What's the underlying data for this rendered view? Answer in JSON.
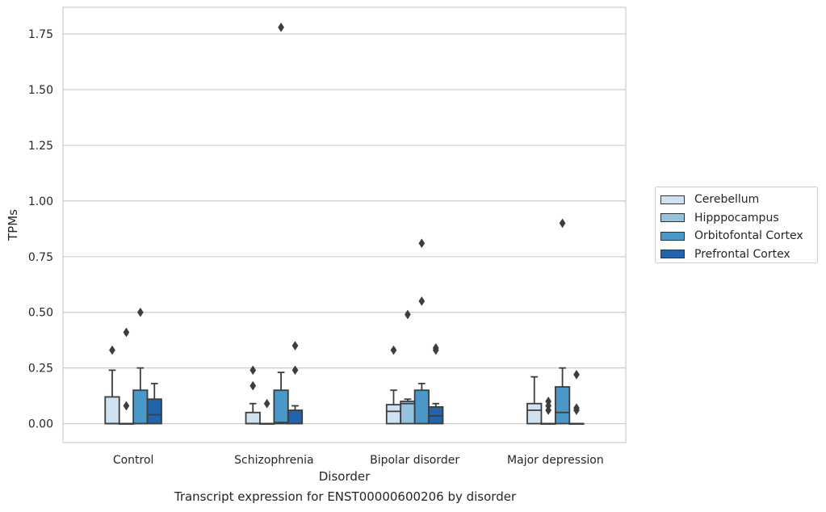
{
  "caption": "Transcript expression for ENST00000600206 by disorder",
  "colors": {
    "Cerebellum": "#d0e1f2",
    "Hipppocampus": "#93c3df",
    "Orbitofontal Cortex": "#4a98c9",
    "Prefrontal Cortex": "#2164ab",
    "grid": "#cccccc",
    "box_edge": "#3d3d3d"
  },
  "chart_data": {
    "type": "box",
    "title": "",
    "xlabel": "Disorder",
    "ylabel": "TPMs",
    "ylim": [
      -0.085,
      1.87
    ],
    "yticks": [
      0.0,
      0.25,
      0.5,
      0.75,
      1.0,
      1.25,
      1.5,
      1.75
    ],
    "ytick_labels": [
      "0.00",
      "0.25",
      "0.50",
      "0.75",
      "1.00",
      "1.25",
      "1.50",
      "1.75"
    ],
    "grid": true,
    "legend_position": "right",
    "categories": [
      "Control",
      "Schizophrenia",
      "Bipolar disorder",
      "Major depression"
    ],
    "series": [
      {
        "name": "Cerebellum",
        "boxes": [
          {
            "q1": 0.0,
            "median": 0.0,
            "q3": 0.12,
            "whislo": 0.0,
            "whishi": 0.24,
            "fliers": [
              0.33
            ]
          },
          {
            "q1": 0.0,
            "median": 0.0,
            "q3": 0.05,
            "whislo": 0.0,
            "whishi": 0.09,
            "fliers": [
              0.17,
              0.24
            ]
          },
          {
            "q1": 0.0,
            "median": 0.055,
            "q3": 0.085,
            "whislo": 0.0,
            "whishi": 0.15,
            "fliers": [
              0.33
            ]
          },
          {
            "q1": 0.0,
            "median": 0.06,
            "q3": 0.09,
            "whislo": 0.0,
            "whishi": 0.21,
            "fliers": []
          }
        ]
      },
      {
        "name": "Hipppocampus",
        "boxes": [
          {
            "q1": 0.0,
            "median": 0.0,
            "q3": 0.0,
            "whislo": 0.0,
            "whishi": 0.0,
            "fliers": [
              0.08,
              0.41
            ]
          },
          {
            "q1": 0.0,
            "median": 0.0,
            "q3": 0.0,
            "whislo": 0.0,
            "whishi": 0.0,
            "fliers": [
              0.09
            ]
          },
          {
            "q1": 0.0,
            "median": 0.09,
            "q3": 0.1,
            "whislo": 0.0,
            "whishi": 0.11,
            "fliers": [
              0.49
            ]
          },
          {
            "q1": 0.0,
            "median": 0.0,
            "q3": 0.0,
            "whislo": 0.0,
            "whishi": 0.0,
            "fliers": [
              0.06,
              0.08,
              0.1
            ]
          }
        ]
      },
      {
        "name": "Orbitofontal Cortex",
        "boxes": [
          {
            "q1": 0.0,
            "median": 0.0,
            "q3": 0.15,
            "whislo": 0.0,
            "whishi": 0.25,
            "fliers": [
              0.5
            ]
          },
          {
            "q1": 0.0,
            "median": 0.005,
            "q3": 0.15,
            "whislo": 0.0,
            "whishi": 0.23,
            "fliers": [
              1.78
            ]
          },
          {
            "q1": 0.0,
            "median": 0.0,
            "q3": 0.15,
            "whislo": 0.0,
            "whishi": 0.18,
            "fliers": [
              0.55,
              0.81
            ]
          },
          {
            "q1": 0.0,
            "median": 0.05,
            "q3": 0.165,
            "whislo": 0.0,
            "whishi": 0.25,
            "fliers": [
              0.9
            ]
          }
        ]
      },
      {
        "name": "Prefrontal Cortex",
        "boxes": [
          {
            "q1": 0.0,
            "median": 0.04,
            "q3": 0.11,
            "whislo": 0.0,
            "whishi": 0.18,
            "fliers": []
          },
          {
            "q1": 0.0,
            "median": 0.0,
            "q3": 0.06,
            "whislo": 0.0,
            "whishi": 0.08,
            "fliers": [
              0.24,
              0.35
            ]
          },
          {
            "q1": 0.0,
            "median": 0.035,
            "q3": 0.075,
            "whislo": 0.0,
            "whishi": 0.09,
            "fliers": [
              0.33,
              0.34
            ]
          },
          {
            "q1": 0.0,
            "median": 0.0,
            "q3": 0.0,
            "whislo": 0.0,
            "whishi": 0.0,
            "fliers": [
              0.06,
              0.07,
              0.22
            ]
          }
        ]
      }
    ]
  }
}
